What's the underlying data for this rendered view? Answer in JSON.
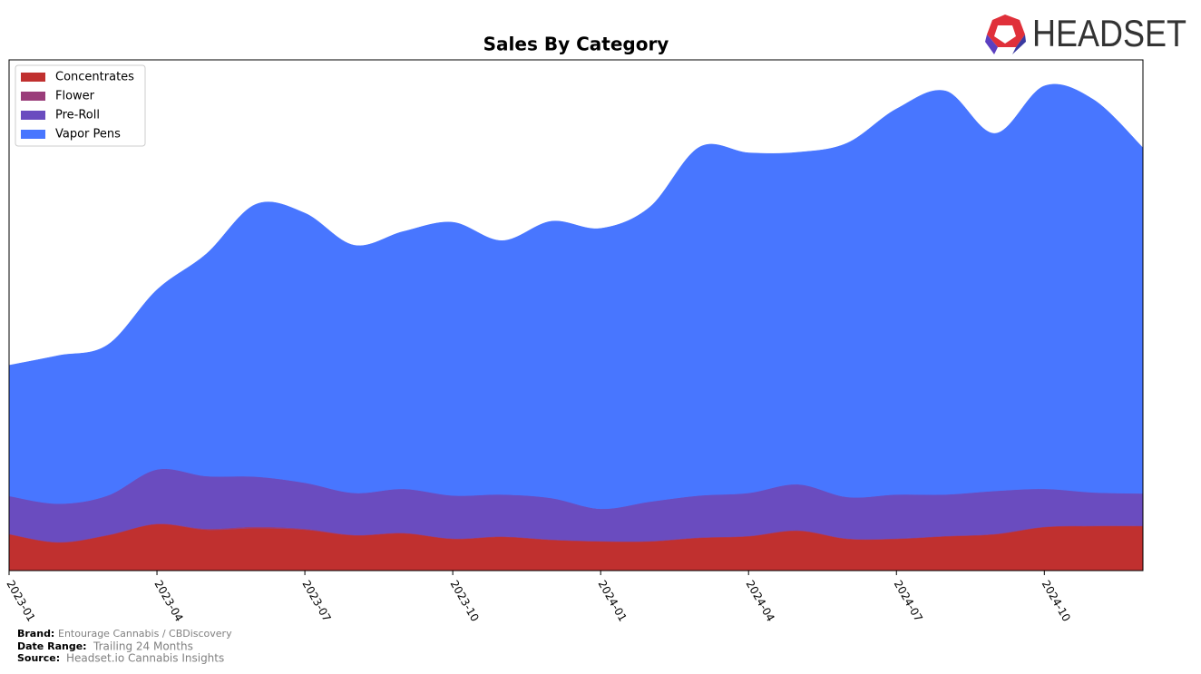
{
  "logo": "HEADSET",
  "footer": {
    "brand_label": "Brand:",
    "brand": "Entourage Cannabis / CBDiscovery",
    "range_label": "Date Range:",
    "range": "Trailing 24 Months",
    "source_label": "Source:",
    "source": "Headset.io Cannabis Insights"
  },
  "chart_data": {
    "type": "stacked-area",
    "title": "Sales By Category",
    "x": [
      "2023-01",
      "2023-02",
      "2023-03",
      "2023-04",
      "2023-05",
      "2023-06",
      "2023-07",
      "2023-08",
      "2023-09",
      "2023-10",
      "2023-11",
      "2023-12",
      "2024-01",
      "2024-02",
      "2024-03",
      "2024-04",
      "2024-05",
      "2024-06",
      "2024-07",
      "2024-08",
      "2024-09",
      "2024-10",
      "2024-11",
      "2024-12"
    ],
    "xticks": [
      "2023-01",
      "2023-04",
      "2023-07",
      "2023-10",
      "2024-01",
      "2024-04",
      "2024-07",
      "2024-10"
    ],
    "ylim": [
      0,
      100
    ],
    "legend": "upper left",
    "series": [
      {
        "name": "Concentrates",
        "color": "#c0302f",
        "values": [
          7.1,
          5.5,
          6.9,
          9.1,
          8.0,
          8.3,
          8.0,
          6.9,
          7.3,
          6.2,
          6.6,
          6.0,
          5.7,
          5.7,
          6.4,
          6.7,
          7.8,
          6.2,
          6.2,
          6.7,
          7.1,
          8.5,
          8.7,
          8.7
        ]
      },
      {
        "name": "Flower",
        "color": "#9a3d7a",
        "values": [
          0.1,
          0.1,
          0.1,
          0.1,
          0.2,
          0.3,
          0.2,
          0.1,
          0.1,
          0.1,
          0.1,
          0.1,
          0.1,
          0.1,
          0.1,
          0.1,
          0.1,
          0.1,
          0.1,
          0.1,
          0.1,
          0.1,
          0.1,
          0.1
        ]
      },
      {
        "name": "Pre-Roll",
        "color": "#6a4cbf",
        "values": [
          7.4,
          7.5,
          7.7,
          10.6,
          10.3,
          9.8,
          9.0,
          8.2,
          8.6,
          8.4,
          8.2,
          8.1,
          6.3,
          7.7,
          8.2,
          8.4,
          9.0,
          8.1,
          8.6,
          8.1,
          8.4,
          7.4,
          6.5,
          6.3
        ]
      },
      {
        "name": "Vapor Pens",
        "color": "#4876ff",
        "values": [
          25.6,
          29.0,
          29.5,
          35.2,
          43.5,
          53.3,
          52.8,
          48.5,
          50.4,
          53.5,
          49.7,
          54.2,
          54.9,
          57.7,
          68.2,
          66.6,
          65.0,
          69.3,
          75.5,
          79.0,
          70.0,
          78.9,
          76.9,
          67.7
        ]
      }
    ]
  }
}
